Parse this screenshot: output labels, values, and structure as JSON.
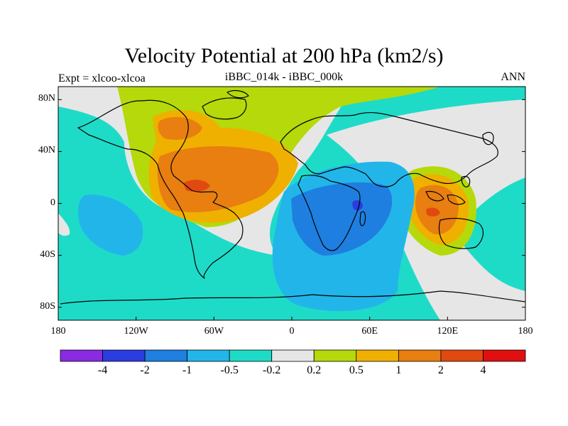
{
  "title": "Velocity Potential at 200 hPa (km2/s)",
  "left_string": "Expt = xlcoo-xlcoa",
  "center_string": "iBBC_014k - iBBC_000k",
  "right_string": "ANN",
  "lat_ticks": [
    {
      "label": "80N",
      "lat": 80
    },
    {
      "label": "40N",
      "lat": 40
    },
    {
      "label": "0",
      "lat": 0
    },
    {
      "label": "40S",
      "lat": -40
    },
    {
      "label": "80S",
      "lat": -80
    }
  ],
  "lon_ticks": [
    {
      "label": "180",
      "lon": -180
    },
    {
      "label": "120W",
      "lon": -120
    },
    {
      "label": "60W",
      "lon": -60
    },
    {
      "label": "0",
      "lon": 0
    },
    {
      "label": "60E",
      "lon": 60
    },
    {
      "label": "120E",
      "lon": 120
    },
    {
      "label": "180",
      "lon": 180
    }
  ],
  "colorbar": {
    "levels": [
      "-4",
      "-2",
      "-1",
      "-0.5",
      "-0.2",
      "0.2",
      "0.5",
      "1",
      "2",
      "4"
    ],
    "colors": [
      "#8A2BE2",
      "#2B3CE0",
      "#1E7FE0",
      "#22B5EA",
      "#1EDBC8",
      "#E6E6E6",
      "#B5D90A",
      "#F0B000",
      "#E87F10",
      "#E04A10",
      "#E01010"
    ]
  },
  "map_colors": {
    "ocean_fill": "#1EDBC8",
    "neutral": "#E6E6E6",
    "coast": "#000000"
  }
}
